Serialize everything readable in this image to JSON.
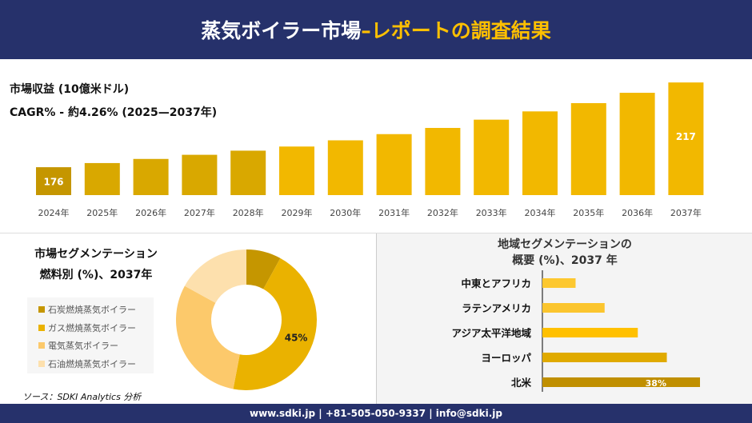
{
  "header": {
    "title_main": "蒸気ボイラー市場 ",
    "title_highlight": "–レポートの調査結果"
  },
  "colors": {
    "navy": "#26316b",
    "accent": "#ffc000"
  },
  "chart_data": [
    {
      "type": "bar",
      "title": "市場収益 (10億米ドル)",
      "subtitle": "CAGR% - 約4.26% (2025—2037年)",
      "categories": [
        "2024年",
        "2025年",
        "2026年",
        "2027年",
        "2028年",
        "2029年",
        "2030年",
        "2031年",
        "2032年",
        "2033年",
        "2034年",
        "2035年",
        "2036年",
        "2037年"
      ],
      "values": [
        176,
        178,
        180,
        182,
        184,
        186,
        189,
        192,
        195,
        199,
        203,
        207,
        212,
        217
      ],
      "data_labels": {
        "0": "176",
        "13": "217"
      },
      "grid": false
    },
    {
      "type": "pie",
      "subtitle": "donut",
      "title_line1": "市場セグメンテーション",
      "title_line2": "燃料別 (%)、2037年",
      "labels": [
        "石炭燃焼蒸気ボイラー",
        "ガス燃焼蒸気ボイラー",
        "電気蒸気ボイラー",
        "石油燃焼蒸気ボイラー"
      ],
      "values": [
        8,
        45,
        30,
        17
      ],
      "colors": [
        "#c59600",
        "#eab200",
        "#fcc96b",
        "#fde0ad"
      ],
      "data_labels": {
        "1": "45%"
      },
      "legend": "left"
    },
    {
      "type": "bar",
      "orientation": "horizontal",
      "title_line1": "地域セグメンテーションの",
      "title_line2": "概要 (%)、2037 年",
      "categories": [
        "中東とアフリカ",
        "ラテンアメリカ",
        "アジア太平洋地域",
        "ヨーロッパ",
        "北米"
      ],
      "values": [
        8,
        15,
        23,
        30,
        38
      ],
      "colors": [
        "#fdc830",
        "#fbc52e",
        "#ffc000",
        "#e0aa00",
        "#c08f00"
      ],
      "data_labels": {
        "4": "38%"
      }
    }
  ],
  "source": "ソース：SDKI Analytics 分析",
  "footer": "www.sdki.jp | +81-505-050-9337 | info@sdki.jp"
}
